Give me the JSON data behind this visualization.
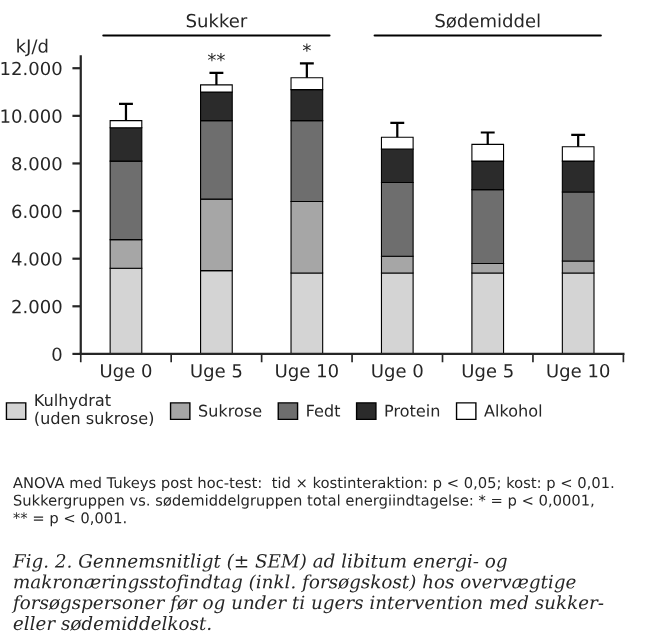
{
  "chart_data": {
    "type": "bar",
    "stacked": true,
    "ylabel": "kJ/d",
    "categories": [
      "Uge 0",
      "Uge 5",
      "Uge 10",
      "Uge 0",
      "Uge 5",
      "Uge 10"
    ],
    "series": [
      {
        "name": "Kulhydrat\n(uden sukrose)",
        "color": "#d4d4d4",
        "values": [
          3600,
          3500,
          3400,
          3400,
          3400,
          3400
        ]
      },
      {
        "name": "Sukrose",
        "color": "#a6a6a6",
        "values": [
          1200,
          3000,
          3000,
          700,
          400,
          500
        ]
      },
      {
        "name": "Fedt",
        "color": "#6e6e6e",
        "values": [
          3300,
          3300,
          3400,
          3100,
          3100,
          2900
        ]
      },
      {
        "name": "Protein",
        "color": "#2b2b2b",
        "values": [
          1400,
          1200,
          1300,
          1400,
          1200,
          1300
        ]
      },
      {
        "name": "Alkohol",
        "color": "#ffffff",
        "values": [
          300,
          300,
          500,
          500,
          700,
          600
        ],
        "errors": [
          700,
          500,
          600,
          600,
          500,
          500
        ],
        "value_labels": [
          null,
          "**",
          "*",
          null,
          null,
          null
        ]
      }
    ],
    "ylim": [
      0,
      12500
    ],
    "yticks": [
      0,
      {
        "value": 2000,
        "label": "2.000"
      },
      {
        "value": 4000,
        "label": "4.000"
      },
      {
        "value": 6000,
        "label": "6.000"
      },
      {
        "value": 8000,
        "label": "8.000"
      },
      {
        "value": 10000,
        "label": "10.000"
      },
      {
        "value": 12000,
        "label": "12.000"
      }
    ],
    "grid": false,
    "legend": "bottom",
    "annotations": [
      "Sukker",
      "Sødemiddel",
      "ANOVA med Tukeys post hoc-test:  tid × kostinteraktion: p < 0,05; kost: p < 0,01.\nSukkergruppen vs. sødemiddelgruppen total energiindtagelse: * = p < 0,0001,\n** = p < 0,001.",
      "Fig. 2. Gennemsnitligt (± SEM) ad libitum energi- og makronæringsstofindtag (inkl. forsøgskost) hos overvægtige forsøgspersoner før og under ti ugers intervention med sukker- eller sødemiddelkost."
    ]
  }
}
